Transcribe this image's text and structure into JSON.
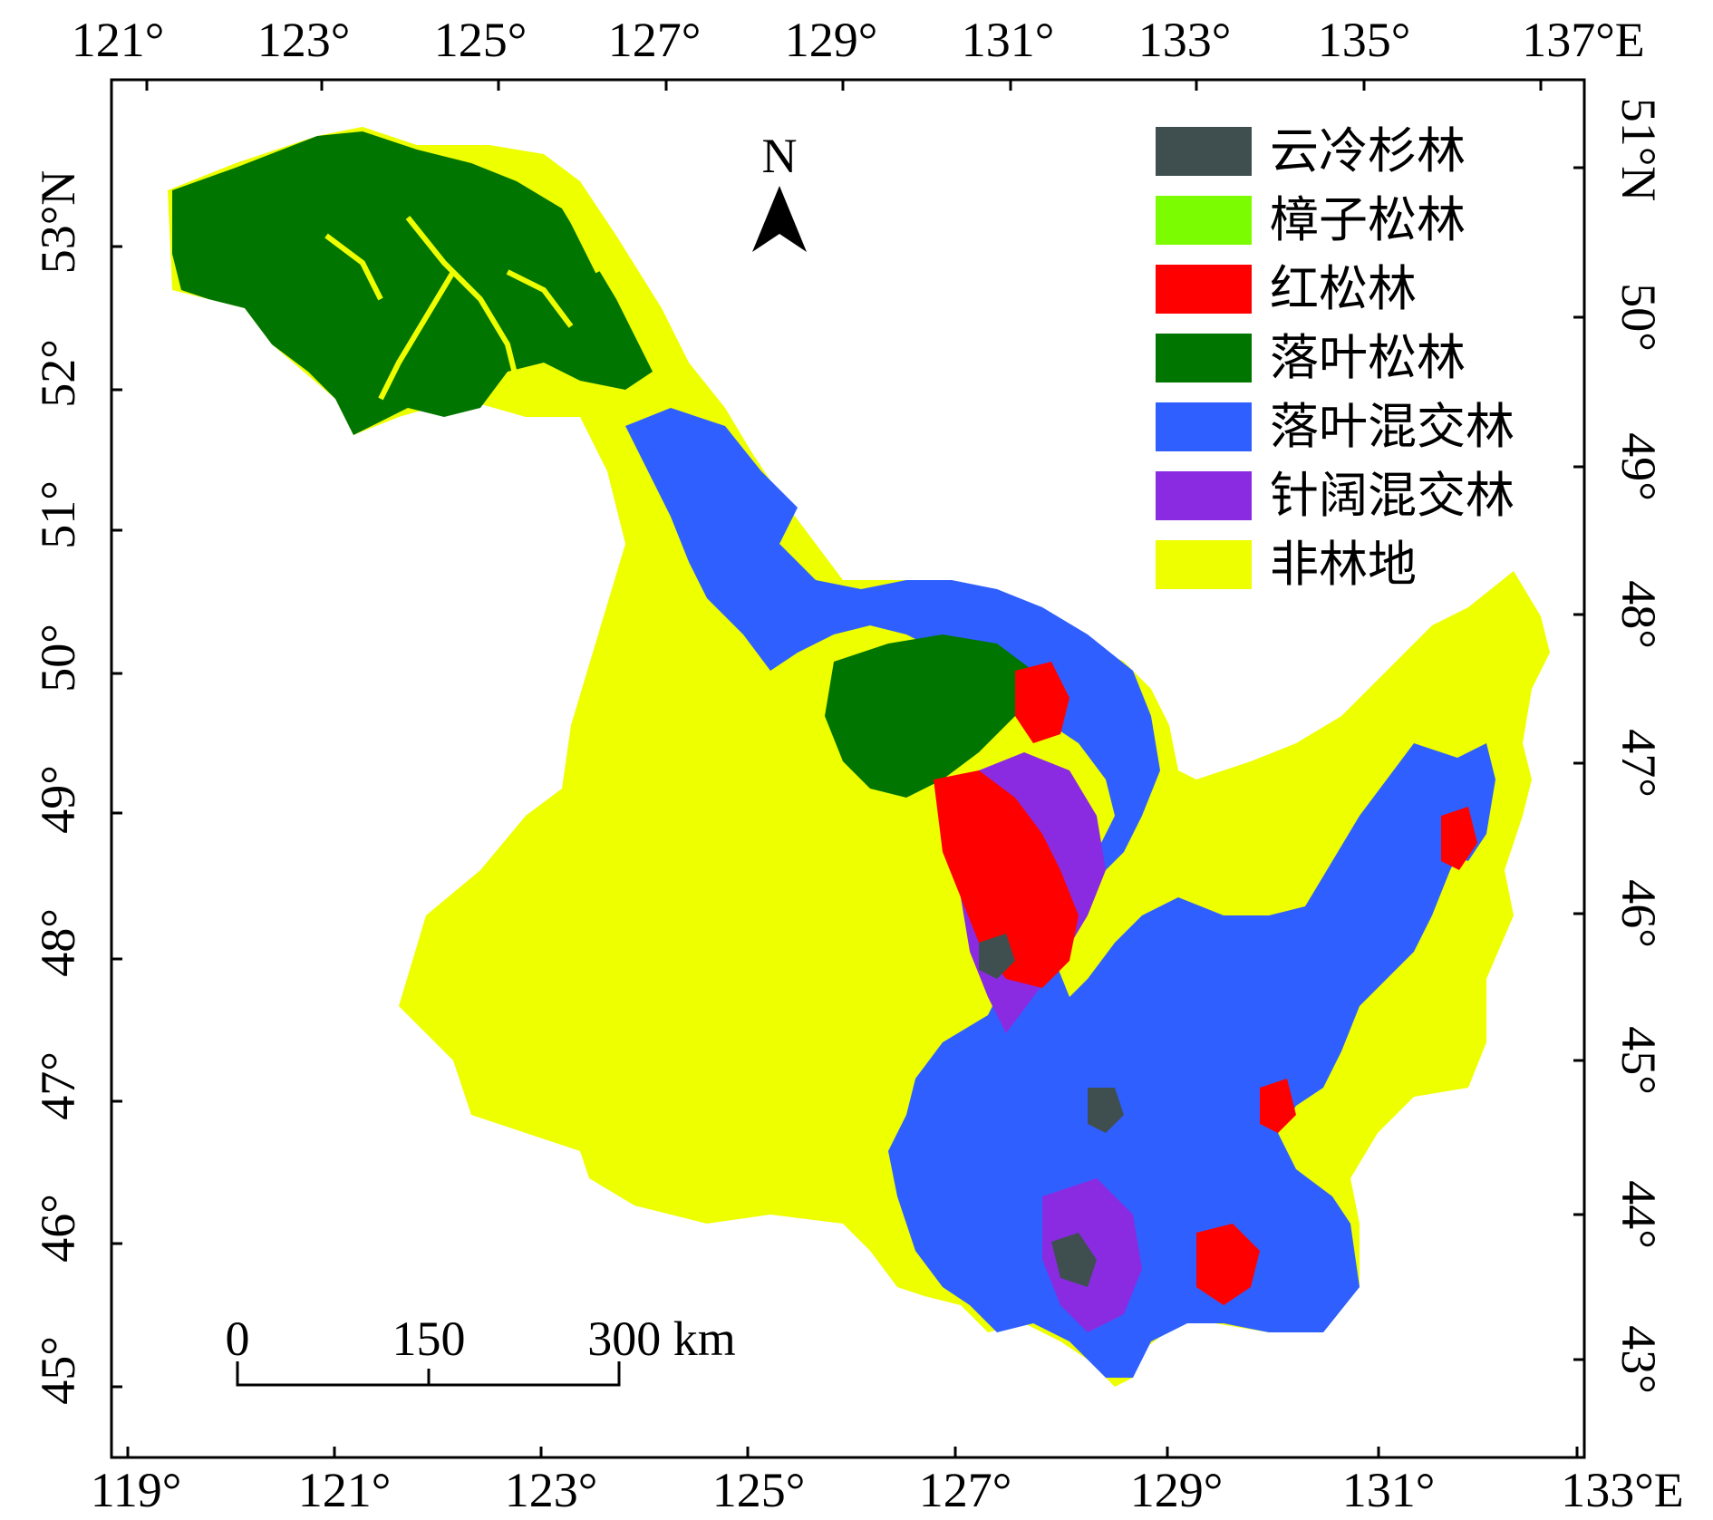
{
  "axes": {
    "top_ticks": [
      "121°",
      "123°",
      "125°",
      "127°",
      "129°",
      "131°",
      "133°",
      "135°",
      "137°E"
    ],
    "bottom_ticks": [
      "119°",
      "121°",
      "123°",
      "125°",
      "127°",
      "129°",
      "131°",
      "133°E"
    ],
    "left_ticks": [
      "53°N",
      "52°",
      "51°",
      "50°",
      "49°",
      "48°",
      "47°",
      "46°",
      "45°"
    ],
    "right_ticks": [
      "51°N",
      "50°",
      "49°",
      "48°",
      "47°",
      "46°",
      "45°",
      "44°",
      "43°"
    ]
  },
  "north_arrow": {
    "label": "N"
  },
  "scale_bar": {
    "labels": [
      "0",
      "150",
      "300 km"
    ]
  },
  "legend": {
    "items": [
      {
        "label": "云冷杉林",
        "color": "#3f4f4f"
      },
      {
        "label": "樟子松林",
        "color": "#7cfc00"
      },
      {
        "label": "红松林",
        "color": "#ff0000"
      },
      {
        "label": "落叶松林",
        "color": "#007500"
      },
      {
        "label": "落叶混交林",
        "color": "#2f5fff"
      },
      {
        "label": "针阔混交林",
        "color": "#8a2be2"
      },
      {
        "label": "非林地",
        "color": "#eeff00"
      }
    ]
  }
}
